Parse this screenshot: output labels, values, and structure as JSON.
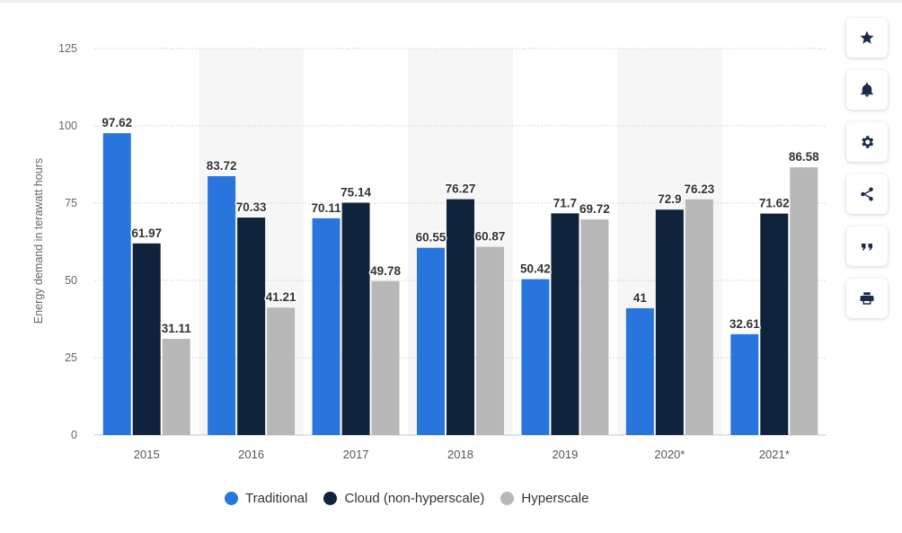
{
  "chart_data": {
    "type": "bar",
    "categories": [
      "2015",
      "2016",
      "2017",
      "2018",
      "2019",
      "2020*",
      "2021*"
    ],
    "series": [
      {
        "name": "Traditional",
        "color": "#2876dd",
        "values": [
          97.62,
          83.72,
          70.11,
          60.55,
          50.42,
          41,
          32.61
        ]
      },
      {
        "name": "Cloud (non-hyperscale)",
        "color": "#10233c",
        "values": [
          61.97,
          70.33,
          75.14,
          76.27,
          71.7,
          72.9,
          71.62
        ]
      },
      {
        "name": "Hyperscale",
        "color": "#b8b8b8",
        "values": [
          31.11,
          41.21,
          49.78,
          60.87,
          69.72,
          76.23,
          86.58
        ]
      }
    ],
    "data_labels": [
      [
        "97.62",
        "83.72",
        "70.11",
        "60.55",
        "50.42",
        "41",
        "32.61"
      ],
      [
        "61.97",
        "70.33",
        "75.14",
        "76.27",
        "71.7",
        "72.9",
        "71.62"
      ],
      [
        "31.11",
        "41.21",
        "49.78",
        "60.87",
        "69.72",
        "76.23",
        "86.58"
      ]
    ],
    "xlabel": "",
    "ylabel": "Energy demand in terawatt hours",
    "ylim": [
      0,
      125
    ],
    "yticks": [
      0,
      25,
      50,
      75,
      100,
      125
    ],
    "grid": true,
    "legend_position": "bottom"
  },
  "toolbar": {
    "buttons": [
      {
        "icon": "star-icon"
      },
      {
        "icon": "bell-icon"
      },
      {
        "icon": "gear-icon"
      },
      {
        "icon": "share-icon"
      },
      {
        "icon": "quote-icon"
      },
      {
        "icon": "print-icon"
      }
    ]
  }
}
